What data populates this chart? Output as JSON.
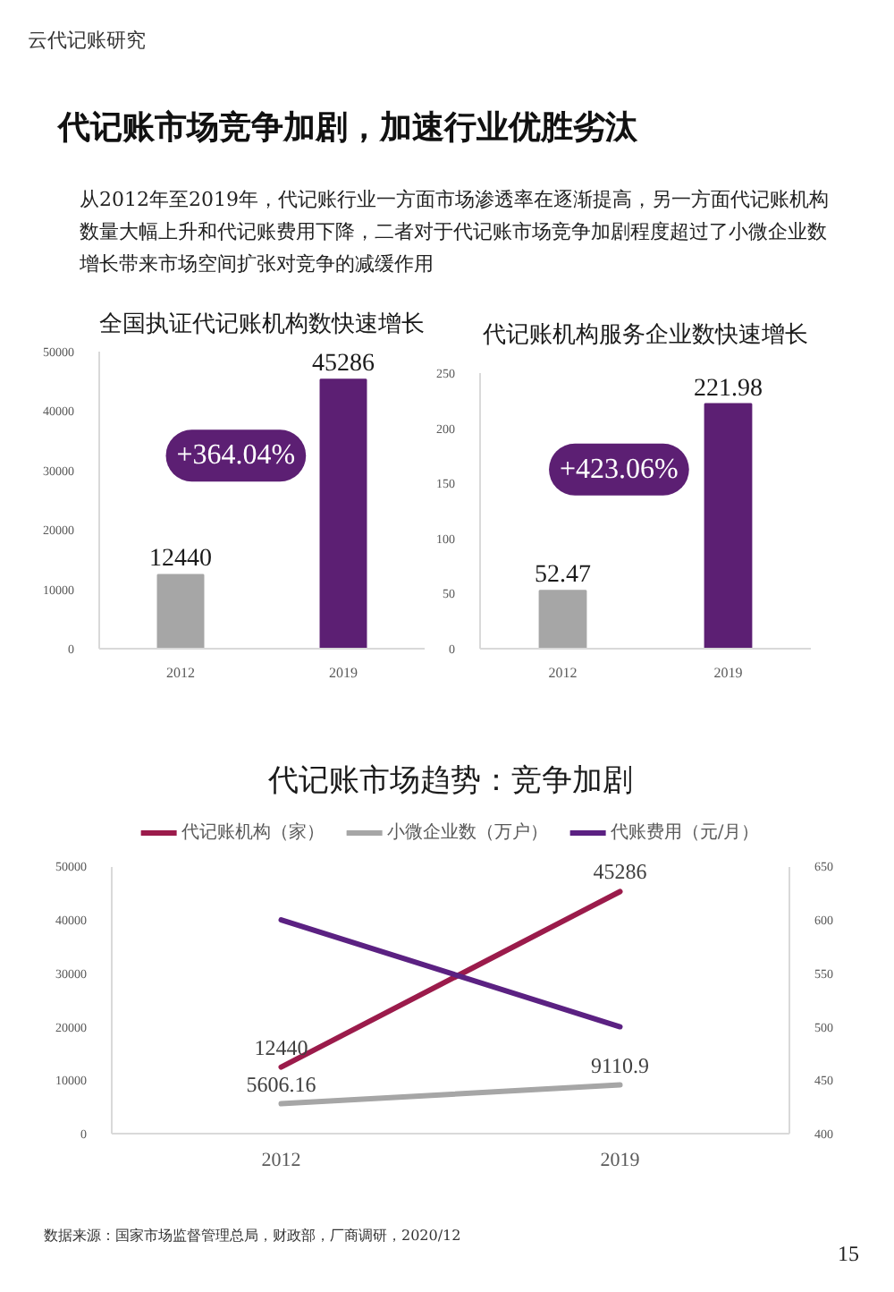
{
  "chart_data": [
    {
      "type": "other",
      "title": "代记账市场竞争加剧，加速行业优胜劣汰",
      "subtitle": "从2012年至2019年，代记账行业一方面市场渗透率在逐渐提高，另一方面代记账机构数量大幅上升和代记账费用下降，二者对于代记账市场竞争加剧程度超过了小微企业数增长带来市场空间扩张对竞争的减缓作用",
      "annotations": [
        "云代记账研究"
      ]
    },
    {
      "type": "bar",
      "title": "全国执证代记账机构数快速增长",
      "categories": [
        "2012",
        "2019"
      ],
      "values": [
        12440,
        45286
      ],
      "colors": [
        "#a6a6a6",
        "#5c1f73"
      ],
      "ylim": [
        0,
        50000
      ],
      "yticks": [
        0,
        10000,
        20000,
        30000,
        40000,
        50000
      ],
      "data_labels": true,
      "annotations": [
        "+364.04%"
      ]
    },
    {
      "type": "bar",
      "title": "代记账机构服务企业数快速增长",
      "categories": [
        "2012",
        "2019"
      ],
      "values": [
        52.47,
        221.98
      ],
      "colors": [
        "#a6a6a6",
        "#5c1f73"
      ],
      "ylim": [
        0,
        250
      ],
      "yticks": [
        0,
        50,
        100,
        150,
        200,
        250
      ],
      "data_labels": true,
      "annotations": [
        "+423.06%"
      ]
    },
    {
      "type": "line",
      "title": "代记账市场趋势：竞争加剧",
      "categories": [
        "2012",
        "2019"
      ],
      "series": [
        {
          "name": "代记账机构（家）",
          "color": "#9b1b4b",
          "values": [
            12440,
            45286
          ],
          "value_labels": [
            "12440",
            "45286"
          ]
        },
        {
          "name": "小微企业数（万户）",
          "color": "#a6a6a6",
          "values": [
            5606.16,
            9110.9
          ],
          "value_labels": [
            "5606.16",
            "9110.9"
          ]
        },
        {
          "name": "代账费用（元/月）",
          "color": "#5b2182",
          "values": [
            600,
            500
          ],
          "axis": "y2"
        }
      ],
      "ylim": [
        0,
        50000
      ],
      "yticks": [
        0,
        10000,
        20000,
        30000,
        40000,
        50000
      ],
      "y2lim": [
        400,
        650
      ],
      "y2ticks": [
        400,
        450,
        500,
        550,
        600,
        650
      ],
      "legend": "top"
    },
    {
      "type": "other",
      "annotations": [
        "数据来源：国家市场监督管理总局，财政部，厂商调研，2020/12",
        "15"
      ]
    }
  ]
}
